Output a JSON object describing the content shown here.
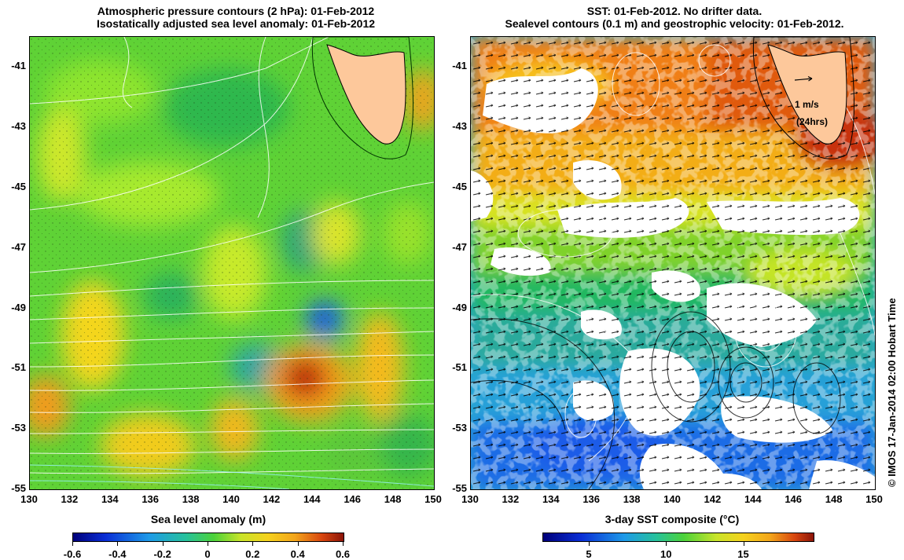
{
  "left_panel": {
    "title_line1": "Atmospheric pressure contours (2 hPa): 01-Feb-2012",
    "title_line2": "Isostatically adjusted sea level anomaly: 01-Feb-2012",
    "colorbar_label": "Sea level anomaly (m)",
    "colorbar_ticks": [
      "-0.6",
      "-0.4",
      "-0.2",
      "0",
      "0.2",
      "0.4",
      "0.6"
    ],
    "colorbar_range": [
      -0.6,
      0.6
    ]
  },
  "right_panel": {
    "title_line1": "SST: 01-Feb-2012. No drifter data.",
    "title_line2": "Sealevel contours (0.1 m) and geostrophic velocity: 01-Feb-2012.",
    "colorbar_label": "3-day SST composite (°C)",
    "colorbar_ticks": [
      "5",
      "10",
      "15"
    ],
    "colorbar_range": [
      2,
      19.5
    ],
    "scale_arrow_line1": "1 m/s",
    "scale_arrow_line2": "(24hrs)"
  },
  "axes": {
    "x_ticks": [
      "130",
      "132",
      "134",
      "136",
      "138",
      "140",
      "142",
      "144",
      "146",
      "148",
      "150"
    ],
    "y_ticks": [
      "-41",
      "-43",
      "-45",
      "-47",
      "-49",
      "-51",
      "-53",
      "-55"
    ],
    "x_range": [
      130,
      150
    ],
    "y_range": [
      -55,
      -40
    ]
  },
  "copyright": "© IMOS 17-Jan-2014 02:00 Hobart Time",
  "colors": {
    "land": "#fdc89b",
    "sla_negative_peak": "#1a2fd6",
    "sla_positive_peak": "#b81e0a",
    "sst_missing": "#ffffff"
  }
}
